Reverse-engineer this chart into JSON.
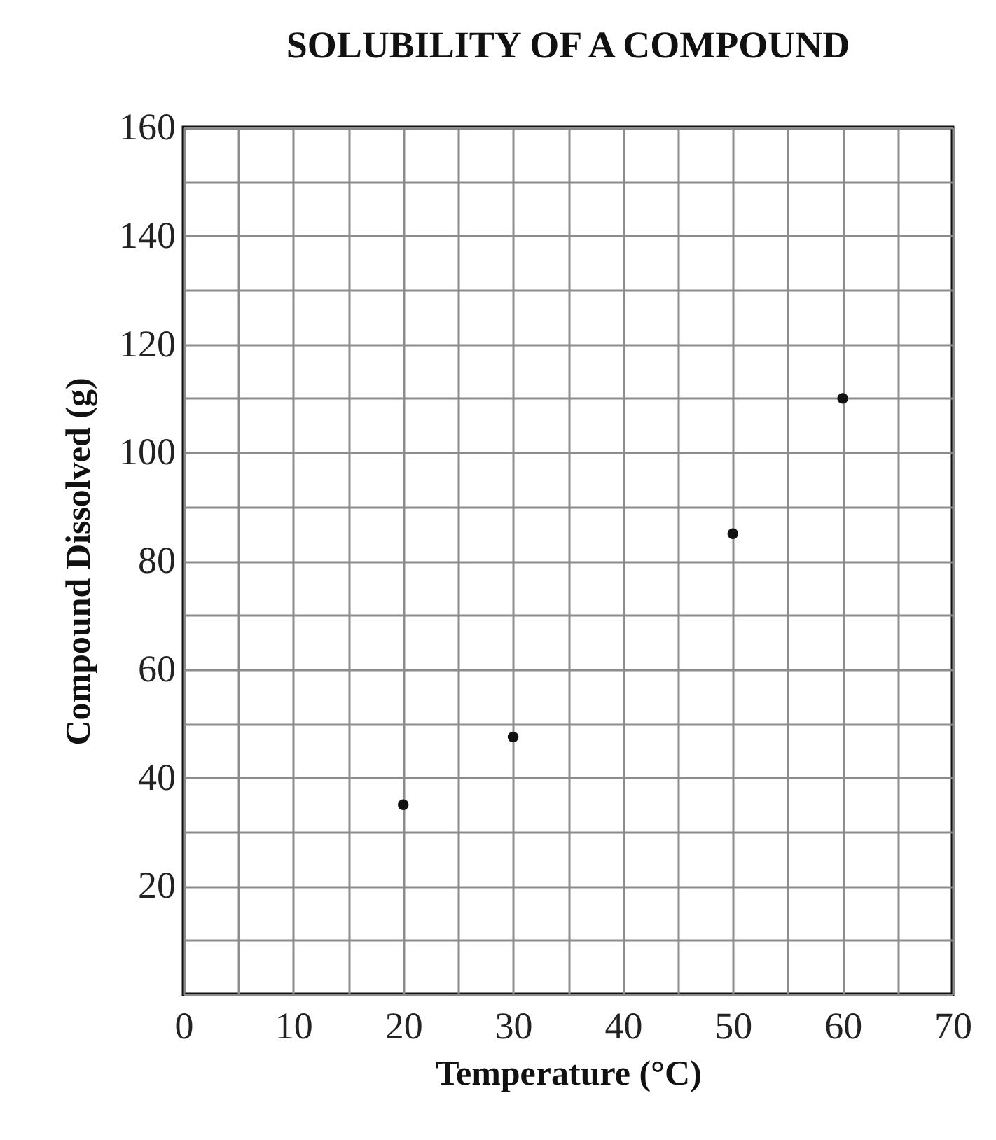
{
  "chart_data": {
    "type": "scatter",
    "title": "SOLUBILITY OF A COMPOUND",
    "xlabel": "Temperature (°C)",
    "ylabel": "Compound Dissolved (g)",
    "x": [
      20,
      30,
      50,
      60
    ],
    "series": [
      {
        "color": "#111111",
        "values": [
          35,
          47.5,
          85,
          110
        ]
      }
    ],
    "xlim": [
      0,
      70
    ],
    "ylim": [
      0,
      160
    ],
    "xticks": [
      0,
      {
        "value": 5,
        "label": null
      },
      10,
      {
        "value": 15,
        "label": null
      },
      20,
      {
        "value": 25,
        "label": null
      },
      30,
      {
        "value": 35,
        "label": null
      },
      40,
      {
        "value": 45,
        "label": null
      },
      50,
      {
        "value": 55,
        "label": null
      },
      60,
      {
        "value": 65,
        "label": null
      },
      70
    ],
    "yticks": [
      {
        "value": 0,
        "label": null
      },
      {
        "value": 10,
        "label": null
      },
      20,
      {
        "value": 30,
        "label": null
      },
      40,
      {
        "value": 50,
        "label": null
      },
      60,
      {
        "value": 70,
        "label": null
      },
      80,
      {
        "value": 90,
        "label": null
      },
      100,
      {
        "value": 110,
        "label": null
      },
      120,
      {
        "value": 130,
        "label": null
      },
      140,
      {
        "value": 150,
        "label": null
      },
      160
    ],
    "grid": true,
    "marker": "circle"
  }
}
